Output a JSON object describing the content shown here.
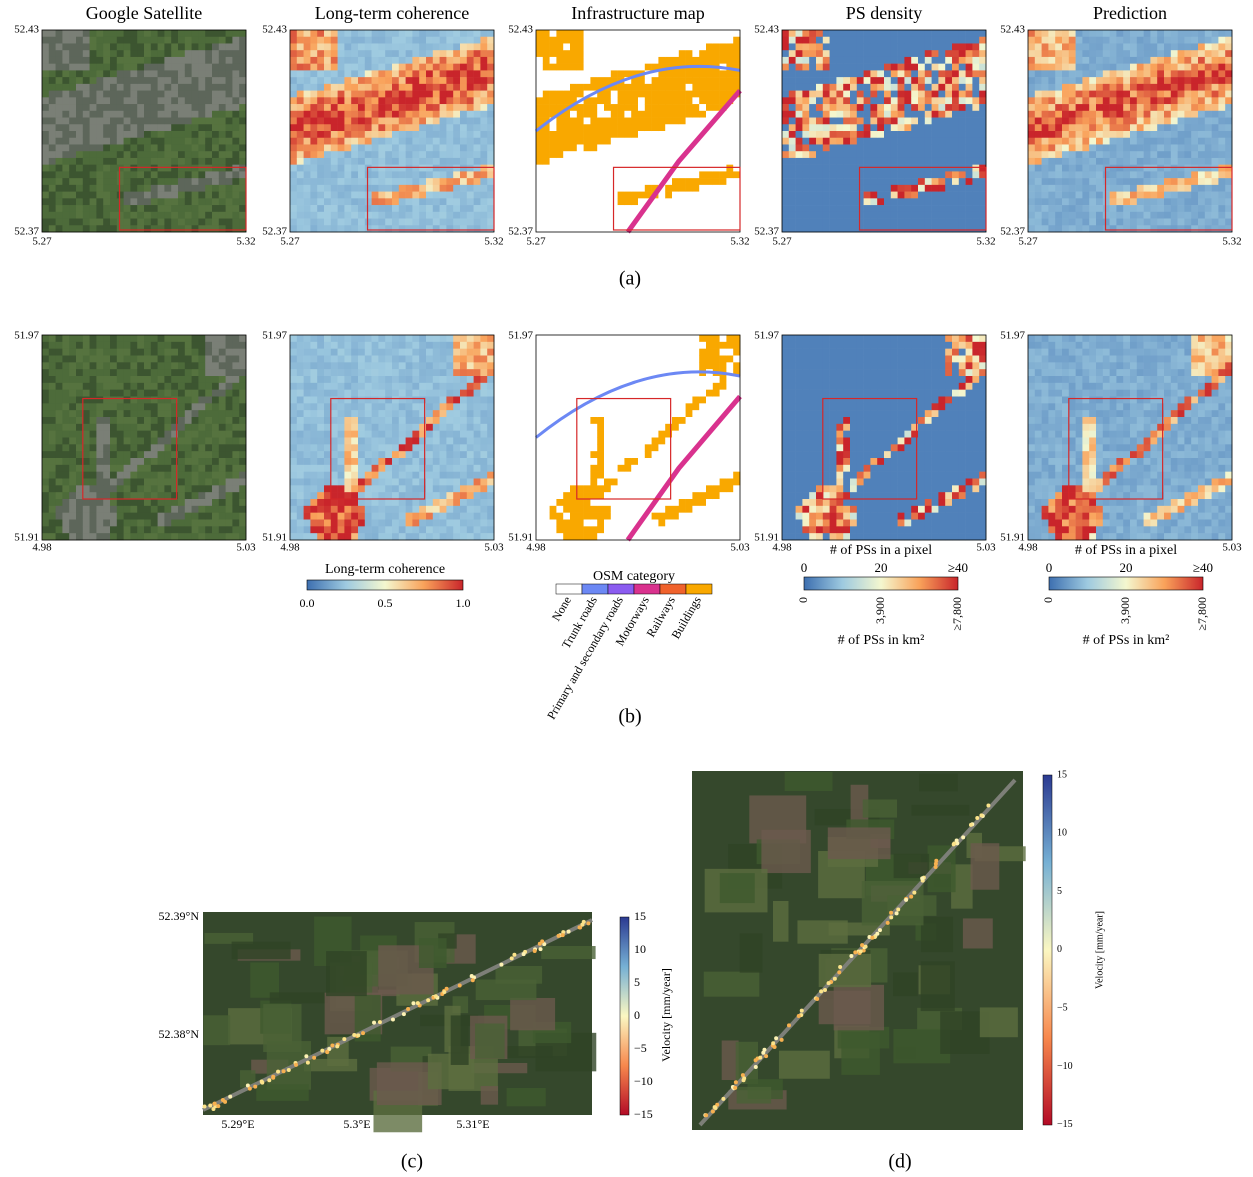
{
  "row_a": {
    "titles": [
      "Google Satellite",
      "Long-term coherence",
      "Infrastructure map",
      "PS density",
      "Prediction"
    ],
    "y_top": "52.43",
    "y_bottom": "52.37",
    "x_left": "5.27",
    "x_right": "5.32",
    "label": "(a)"
  },
  "row_b": {
    "y_top": "51.97",
    "y_bottom": "51.91",
    "x_left": "4.98",
    "x_right": "5.03",
    "label": "(b)"
  },
  "coherence_bar": {
    "title": "Long-term coherence",
    "ticks": [
      "0.0",
      "0.5",
      "1.0"
    ]
  },
  "osm_bar": {
    "title": "OSM category",
    "categories": [
      "None",
      "Trunk roads",
      "Primary and secondary roads",
      "Motorways",
      "Railways",
      "Buildings"
    ]
  },
  "ps_bars": [
    {
      "top_title": "# of PSs in a pixel",
      "top_ticks": [
        "0",
        "20",
        "≥40"
      ],
      "bottom_ticks": [
        "0",
        "3,900",
        "≥7,800"
      ],
      "bottom_title": "# of PSs in km²"
    },
    {
      "top_title": "# of PSs in a pixel",
      "top_ticks": [
        "0",
        "20",
        "≥40"
      ],
      "bottom_ticks": [
        "0",
        "3,900",
        "≥7,800"
      ],
      "bottom_title": "# of PSs in km²"
    }
  ],
  "panel_c": {
    "lat_ticks": [
      "52.39°N",
      "52.38°N"
    ],
    "lon_ticks": [
      "5.29°E",
      "5.3°E",
      "5.31°E"
    ],
    "colorbar_label": "Velocity [mm/year]",
    "colorbar_ticks": [
      "15",
      "10",
      "5",
      "0",
      "−5",
      "−10",
      "−15"
    ],
    "label": "(c)"
  },
  "panel_d": {
    "colorbar_label": "Velocity [mm/year]",
    "colorbar_ticks": [
      "15",
      "10",
      "5",
      "0",
      "−5",
      "−10",
      "−15"
    ],
    "label": "(d)"
  }
}
